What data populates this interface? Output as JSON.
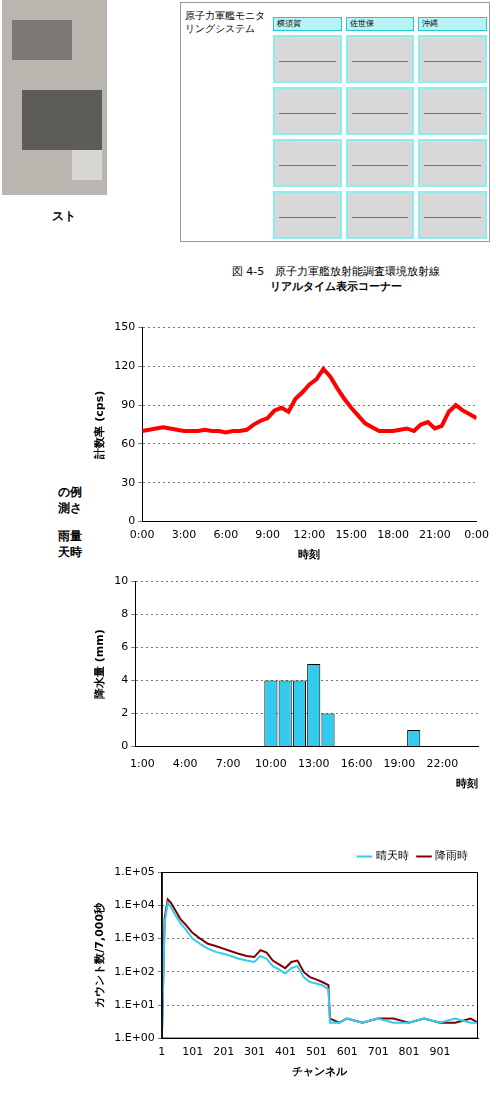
{
  "screenshot": {
    "title": "原子力軍艦モニタリングシステム",
    "tabs": [
      "横須賀",
      "佐世保",
      "沖縄"
    ]
  },
  "figure_caption": [
    "図 4-5　原子力軍艦放射能調査環境放射線",
    "リアルタイム表示コーナー"
  ],
  "side_fragments": [
    "スト",
    "の例",
    "測さ",
    "雨量",
    "天時"
  ],
  "chart_data": [
    {
      "type": "line",
      "y_label": "計数率 (cps)",
      "x_label": "時刻",
      "color": "#ff0000",
      "grid": true,
      "x": [
        0,
        0.5,
        1,
        1.5,
        2,
        2.5,
        3,
        3.5,
        4,
        4.5,
        5,
        5.5,
        6,
        6.5,
        7,
        7.5,
        8,
        8.5,
        9,
        9.5,
        10,
        10.5,
        11,
        11.5,
        12,
        12.5,
        13,
        13.5,
        14,
        14.5,
        15,
        15.5,
        16,
        16.5,
        17,
        17.5,
        18,
        18.5,
        19,
        19.5,
        20,
        20.5,
        21,
        21.5,
        22,
        22.5,
        23,
        23.5,
        24
      ],
      "values": [
        70,
        71,
        72,
        73,
        72,
        71,
        70,
        70,
        70,
        71,
        70,
        70,
        69,
        70,
        70,
        71,
        75,
        78,
        80,
        86,
        88,
        85,
        95,
        100,
        106,
        110,
        118,
        112,
        103,
        95,
        88,
        82,
        76,
        73,
        70,
        70,
        70,
        71,
        72,
        70,
        75,
        77,
        72,
        74,
        85,
        90,
        86,
        83,
        80
      ],
      "xlim": [
        0,
        24
      ],
      "xticks": [
        {
          "value": 0,
          "label": "0:00"
        },
        {
          "value": 3,
          "label": "3:00"
        },
        {
          "value": 6,
          "label": "6:00"
        },
        {
          "value": 9,
          "label": "9:00"
        },
        {
          "value": 12,
          "label": "12:00"
        },
        {
          "value": 15,
          "label": "15:00"
        },
        {
          "value": 18,
          "label": "18:00"
        },
        {
          "value": 21,
          "label": "21:00"
        },
        {
          "value": 24,
          "label": "0:00"
        }
      ],
      "ylim": [
        0,
        150
      ],
      "yticks": [
        0,
        30,
        60,
        90,
        120,
        150
      ]
    },
    {
      "type": "bar",
      "y_label": "降水量 (mm)",
      "x_label": "時刻",
      "color": "#33ccee",
      "grid": true,
      "categories": [
        "1:00",
        null,
        null,
        "4:00",
        null,
        null,
        "7:00",
        null,
        null,
        "10:00",
        null,
        null,
        "13:00",
        null,
        null,
        "16:00",
        null,
        null,
        "19:00",
        null,
        null,
        "22:00",
        null,
        null
      ],
      "values": [
        0,
        0,
        0,
        0,
        0,
        0,
        0,
        0,
        0,
        4,
        4,
        4,
        5,
        2,
        0,
        0,
        0,
        0,
        0,
        1,
        0,
        0,
        0,
        0
      ],
      "ylim": [
        0,
        10
      ],
      "yticks": [
        0,
        2,
        4,
        6,
        8,
        10
      ]
    },
    {
      "type": "line",
      "y_label": "カウント数/7,000秒",
      "x_label": "チャンネル",
      "log": "y",
      "grid": true,
      "legend": "top-right",
      "x": [
        1,
        10,
        20,
        30,
        45,
        60,
        80,
        100,
        125,
        150,
        175,
        200,
        225,
        250,
        275,
        300,
        320,
        340,
        360,
        380,
        400,
        420,
        440,
        460,
        480,
        500,
        520,
        540,
        545,
        575,
        600,
        650,
        700,
        750,
        800,
        850,
        900,
        950,
        1000,
        1024
      ],
      "series": [
        {
          "name": "晴天時",
          "color": "#33ccee",
          "values": [
            1,
            3000,
            12000,
            9000,
            5000,
            3000,
            1800,
            1000,
            700,
            500,
            400,
            350,
            300,
            250,
            220,
            200,
            300,
            250,
            150,
            120,
            90,
            130,
            150,
            70,
            50,
            45,
            40,
            30,
            3,
            3,
            4,
            3,
            4,
            3,
            3,
            4,
            3,
            4,
            3,
            3
          ]
        },
        {
          "name": "降雨時",
          "color": "#800000",
          "values": [
            1,
            4000,
            15000,
            12000,
            7000,
            4000,
            2500,
            1500,
            1000,
            700,
            600,
            500,
            420,
            350,
            300,
            280,
            450,
            380,
            220,
            170,
            130,
            200,
            220,
            100,
            70,
            60,
            50,
            40,
            4,
            3,
            4,
            3,
            4,
            4,
            3,
            4,
            3,
            3,
            4,
            3
          ]
        }
      ],
      "xlim": [
        1,
        1024
      ],
      "xticks": [
        1,
        101,
        201,
        301,
        401,
        501,
        601,
        701,
        801,
        901
      ],
      "ylim": [
        1,
        100000
      ],
      "yticks": [
        {
          "value": 1,
          "label": "1.E+00"
        },
        {
          "value": 10,
          "label": "1.E+01"
        },
        {
          "value": 100,
          "label": "1.E+02"
        },
        {
          "value": 1000,
          "label": "1.E+03"
        },
        {
          "value": 10000,
          "label": "1.E+04"
        },
        {
          "value": 100000,
          "label": "1.E+05"
        }
      ]
    }
  ]
}
